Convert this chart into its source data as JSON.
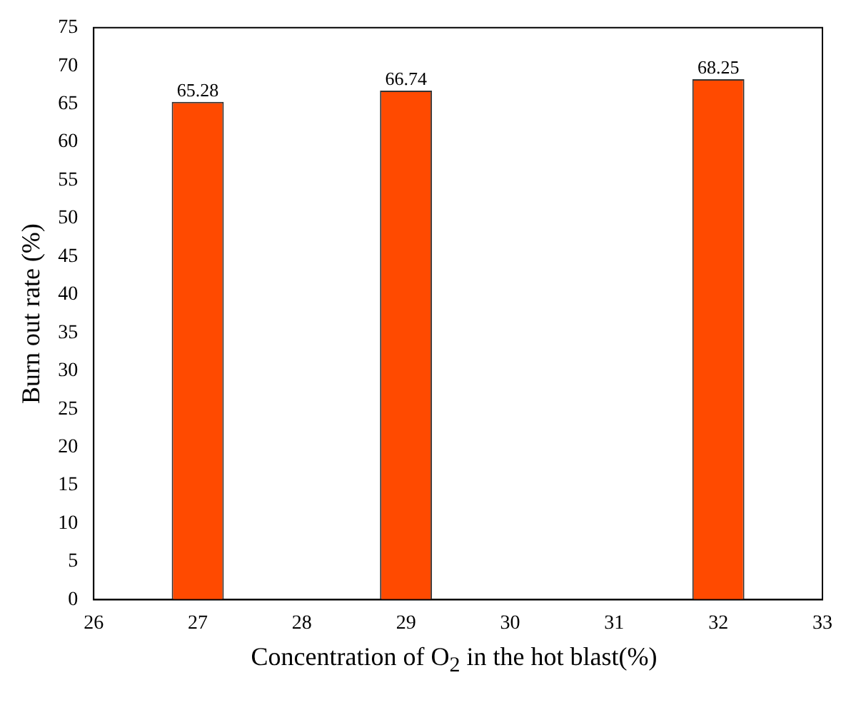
{
  "chart_data": {
    "type": "bar",
    "xlabel": "Concentration of O$_{2}$ in the hot blast(%)",
    "ylabel": "Burn out rate (%)",
    "x": [
      27,
      29,
      32
    ],
    "values": [
      65.28,
      66.74,
      68.25
    ],
    "color": "#ff4a00",
    "xlim": [
      26,
      33
    ],
    "xticks": [
      26,
      27,
      28,
      29,
      30,
      31,
      32,
      33
    ],
    "ylim": [
      0,
      75
    ],
    "yticks": [
      0,
      5,
      10,
      15,
      20,
      25,
      30,
      35,
      40,
      45,
      50,
      55,
      60,
      65,
      70,
      75
    ],
    "grid": false,
    "legend": false,
    "data_labels": true
  }
}
